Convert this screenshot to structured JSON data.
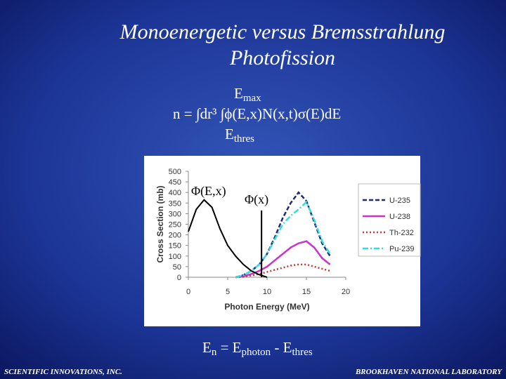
{
  "title": [
    "Monoenergetic versus Bremsstrahlung",
    "Photofission"
  ],
  "formula": {
    "upper": [
      "E",
      "max"
    ],
    "main": "n = ∫dr³ ∫ϕ(E,x)N(x,t)σ(E)dE",
    "lower": [
      "E",
      "thres"
    ]
  },
  "energy_relation": [
    "E",
    "n",
    " =  E",
    "photon",
    " - E",
    "thres"
  ],
  "footer": {
    "left": "SCIENTIFIC INNOVATIONS, INC.",
    "right": "BROOKHAVEN NATIONAL LABORATORY"
  },
  "chart_data": {
    "type": "line",
    "xlabel": "Photon Energy (MeV)",
    "ylabel": "Cross Section (mb)",
    "xlim": [
      0,
      20
    ],
    "ylim": [
      0,
      500
    ],
    "xticks": [
      0,
      5,
      10,
      15,
      20
    ],
    "yticks": [
      0,
      50,
      100,
      150,
      200,
      250,
      300,
      350,
      400,
      450,
      500
    ],
    "annotations": [
      "Φ(E,x)",
      "Φ(x)"
    ],
    "series": [
      {
        "name": "U-235",
        "color": "#1f2a7a",
        "dash": "dashed",
        "x": [
          6,
          7,
          8,
          9,
          10,
          11,
          12,
          13,
          14,
          15,
          16,
          17,
          18
        ],
        "values": [
          0,
          10,
          30,
          60,
          110,
          190,
          280,
          350,
          400,
          360,
          260,
          160,
          100
        ]
      },
      {
        "name": "U-238",
        "color": "#cc33cc",
        "dash": "solid",
        "x": [
          6,
          7,
          8,
          9,
          10,
          11,
          12,
          13,
          14,
          15,
          16,
          17,
          18
        ],
        "values": [
          0,
          5,
          15,
          30,
          50,
          80,
          110,
          140,
          160,
          170,
          140,
          90,
          60
        ]
      },
      {
        "name": "Th-232",
        "color": "#cc3333",
        "dash": "dotted",
        "x": [
          6,
          7,
          8,
          9,
          10,
          11,
          12,
          13,
          14,
          15,
          16,
          17,
          18
        ],
        "values": [
          0,
          2,
          8,
          15,
          25,
          35,
          45,
          55,
          60,
          60,
          50,
          40,
          30
        ]
      },
      {
        "name": "Pu-239",
        "color": "#33dddd",
        "dash": "dashdot",
        "x": [
          6,
          7,
          8,
          9,
          10,
          11,
          12,
          13,
          14,
          15,
          16,
          17,
          18
        ],
        "values": [
          0,
          10,
          30,
          60,
          110,
          180,
          250,
          290,
          320,
          355,
          270,
          170,
          110
        ]
      },
      {
        "color": "#000000",
        "dash": "solid",
        "x": [
          0,
          1,
          2,
          3,
          4,
          5,
          6,
          7,
          8,
          9,
          10
        ],
        "values": [
          215,
          320,
          365,
          330,
          230,
          150,
          100,
          60,
          30,
          12,
          0
        ]
      },
      {
        "color": "#000000",
        "dash": "solid",
        "x": [
          9.3,
          9.3
        ],
        "values": [
          0,
          315
        ]
      }
    ]
  }
}
